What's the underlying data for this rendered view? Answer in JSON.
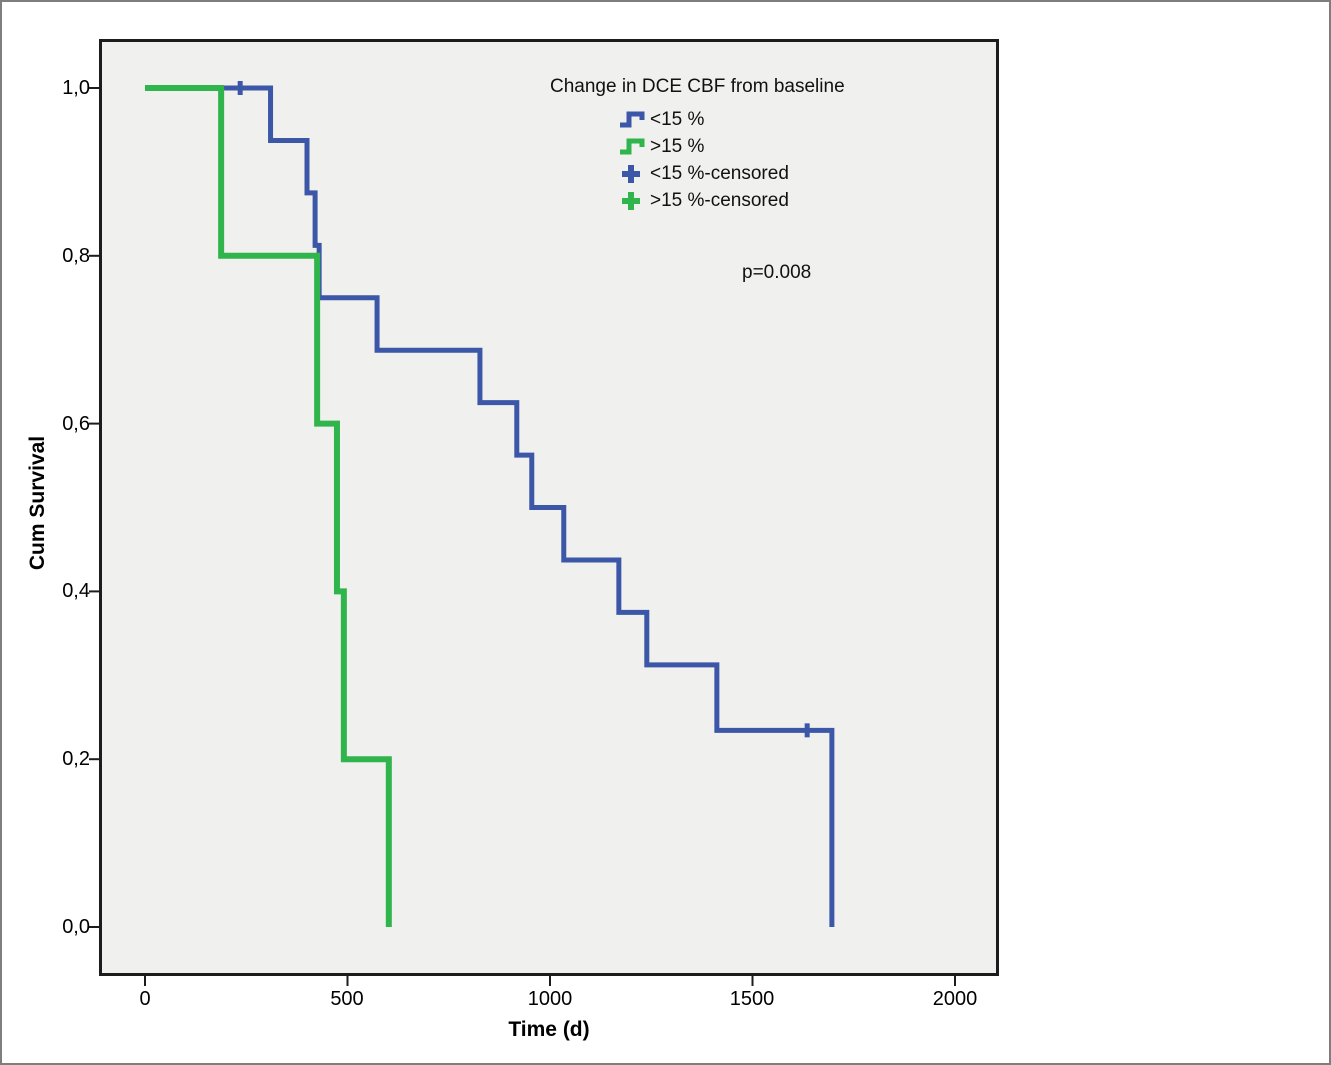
{
  "figure": {
    "x_axis_title": "Time (d)",
    "y_axis_title": "Cum Survival",
    "x_tick_labels": [
      "0",
      "500",
      "1000",
      "1500",
      "2000"
    ],
    "x_tick_values": [
      0,
      500,
      1000,
      1500,
      2000
    ],
    "y_tick_labels": [
      "1,0",
      "0,8",
      "0,6",
      "0,4",
      "0,2",
      "0,0"
    ],
    "y_tick_values": [
      1.0,
      0.8,
      0.6,
      0.4,
      0.2,
      0.0
    ],
    "plot_background": "#f0f0ee",
    "frame_color": "#1c1c1c"
  },
  "legend": {
    "title": "Change in DCE CBF from baseline",
    "items": [
      {
        "label": "<15 %",
        "symbol": "step-line-icon",
        "color": "#3c57a8"
      },
      {
        "label": ">15 %",
        "symbol": "step-line-icon",
        "color": "#30b44c"
      },
      {
        "label": "<15 %-censored",
        "symbol": "plus-censor-icon",
        "color": "#3c57a8"
      },
      {
        "label": ">15 %-censored",
        "symbol": "plus-censor-icon",
        "color": "#30b44c"
      }
    ]
  },
  "annotation": {
    "p_value": "p=0.008"
  },
  "chart_data": {
    "type": "line",
    "subtype": "kaplan-meier-step",
    "title": "",
    "xlabel": "Time (d)",
    "ylabel": "Cum Survival",
    "xlim": [
      0,
      2000
    ],
    "ylim": [
      0.0,
      1.0
    ],
    "grid": false,
    "legend_position": "top-right-inside",
    "p_value": "p=0.008",
    "series": [
      {
        "name": "<15 %",
        "color": "#3c57a8",
        "stroke_width": 5,
        "survival_levels": [
          [
            0,
            1.0
          ],
          [
            310,
            0.9375
          ],
          [
            400,
            0.875
          ],
          [
            420,
            0.8125
          ],
          [
            430,
            0.75
          ],
          [
            573,
            0.6875
          ],
          [
            827,
            0.625
          ],
          [
            918,
            0.5625
          ],
          [
            955,
            0.5
          ],
          [
            1034,
            0.4375
          ],
          [
            1170,
            0.375
          ],
          [
            1239,
            0.3125
          ],
          [
            1412,
            0.2344
          ],
          [
            1696,
            0.0
          ]
        ],
        "censored_points": [
          [
            235,
            1.0
          ],
          [
            1635,
            0.2344
          ]
        ]
      },
      {
        "name": ">15 %",
        "color": "#30b44c",
        "stroke_width": 6,
        "survival_levels": [
          [
            0,
            1.0
          ],
          [
            188,
            0.8
          ],
          [
            425,
            0.6
          ],
          [
            474,
            0.4
          ],
          [
            491,
            0.2
          ],
          [
            602,
            0.0
          ]
        ],
        "censored_points": []
      }
    ]
  }
}
